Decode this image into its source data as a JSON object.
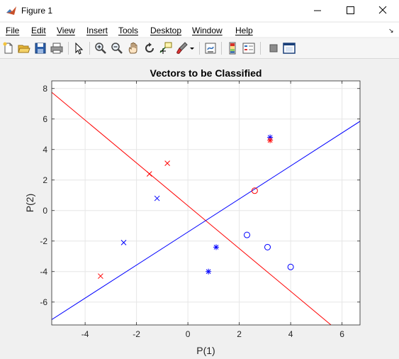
{
  "window": {
    "title": "Figure 1",
    "minimize": "—",
    "maximize": "☐",
    "close": "✕"
  },
  "menu": {
    "items": [
      "File",
      "Edit",
      "View",
      "Insert",
      "Tools",
      "Desktop",
      "Window",
      "Help"
    ],
    "overflow": "↘"
  },
  "toolbar": {
    "icons": [
      "new-figure-icon",
      "open-file-icon",
      "save-icon",
      "print-icon",
      "pointer-icon",
      "zoom-in-icon",
      "zoom-out-icon",
      "pan-icon",
      "rotate-3d-icon",
      "data-cursor-icon",
      "brush-icon",
      "link-plot-icon",
      "colorbar-icon",
      "legend-icon",
      "hide-plot-tools-icon",
      "show-plot-tools-icon"
    ]
  },
  "colors": {
    "class_red": "#ff0000",
    "class_blue": "#0000ff",
    "grid": "#e6e6e6",
    "axes_bg": "#ffffff"
  },
  "chart_data": {
    "type": "scatter",
    "title": "Vectors to be Classified",
    "xlabel": "P(1)",
    "ylabel": "P(2)",
    "xlim": [
      -5.3,
      6.7
    ],
    "ylim": [
      -7.5,
      8.5
    ],
    "xticks": [
      -4,
      -2,
      0,
      2,
      4,
      6
    ],
    "yticks": [
      -6,
      -4,
      -2,
      0,
      2,
      4,
      6,
      8
    ],
    "grid": true,
    "series": [
      {
        "name": "red-x",
        "marker": "x",
        "color": "#ff0000",
        "points": [
          [
            -3.4,
            -4.3
          ],
          [
            -1.5,
            2.4
          ],
          [
            -0.8,
            3.1
          ]
        ]
      },
      {
        "name": "blue-x",
        "marker": "x",
        "color": "#0000ff",
        "points": [
          [
            -2.5,
            -2.1
          ],
          [
            -1.2,
            0.8
          ]
        ]
      },
      {
        "name": "red-o",
        "marker": "o",
        "color": "#ff0000",
        "points": [
          [
            2.6,
            1.3
          ]
        ]
      },
      {
        "name": "blue-o",
        "marker": "o",
        "color": "#0000ff",
        "points": [
          [
            2.3,
            -1.6
          ],
          [
            3.1,
            -2.4
          ],
          [
            4.0,
            -3.7
          ]
        ]
      },
      {
        "name": "blue-star",
        "marker": "*",
        "color": "#0000ff",
        "points": [
          [
            0.8,
            -4.0
          ],
          [
            1.1,
            -2.4
          ],
          [
            3.2,
            4.8
          ]
        ]
      },
      {
        "name": "red-star",
        "marker": "*",
        "color": "#ff0000",
        "points": [
          [
            3.2,
            4.6
          ]
        ]
      }
    ],
    "lines": [
      {
        "name": "red-boundary",
        "color": "#ff0000",
        "points": [
          [
            -5.3,
            7.75
          ],
          [
            5.57,
            -7.5
          ]
        ]
      },
      {
        "name": "blue-boundary",
        "color": "#0000ff",
        "points": [
          [
            -5.3,
            -7.15
          ],
          [
            6.7,
            5.85
          ]
        ]
      }
    ]
  }
}
